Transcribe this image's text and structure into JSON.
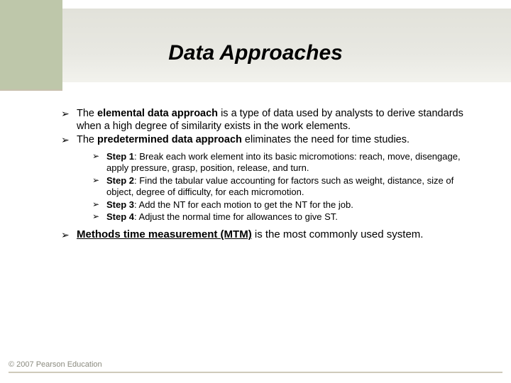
{
  "colors": {
    "header_block": "#bec7aa",
    "band_top": "#e2e2da",
    "band_bottom": "#f2f2ed",
    "footer_text": "#8a8a7e",
    "footer_line": "#cfcabb",
    "text": "#000000",
    "background": "#ffffff"
  },
  "title": "Data Approaches",
  "bullets": {
    "b1_pre": "The ",
    "b1_bold": "elemental data approach",
    "b1_post": " is a type of data used by analysts to derive standards when a high degree of similarity exists in the work elements.",
    "b2_pre": "The ",
    "b2_bold": "predetermined data approach",
    "b2_post": " eliminates the need for time studies.",
    "steps": {
      "s1_label": "Step 1",
      "s1_text": ":  Break each work element into its basic micromotions: reach, move, disengage, apply pressure, grasp, position, release, and turn.",
      "s2_label": "Step 2",
      "s2_text": ": Find the tabular value accounting for factors such as weight, distance, size of object, degree of difficulty, for each micromotion.",
      "s3_label": "Step 3",
      "s3_text": ": Add the NT for each motion to get the NT for the job.",
      "s4_label": "Step 4",
      "s4_text": ": Adjust the normal time for allowances to give ST."
    },
    "b3_bold": "Methods time measurement (MTM)",
    "b3_post": " is the most commonly used system."
  },
  "footer": "© 2007 Pearson Education"
}
